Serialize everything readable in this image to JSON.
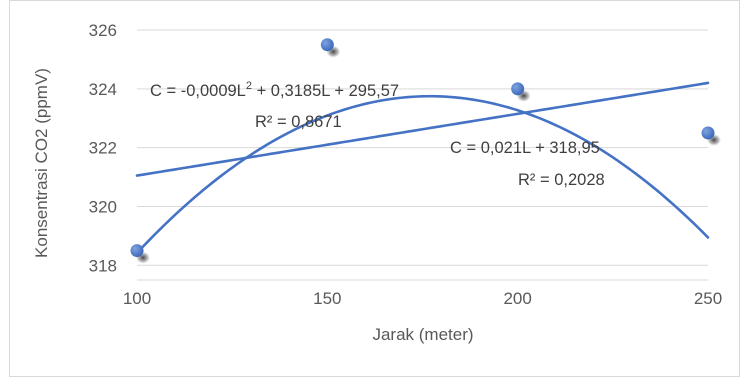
{
  "chart_data": {
    "type": "scatter",
    "x": [
      100,
      150,
      200,
      250
    ],
    "y": [
      318.5,
      325.5,
      324.0,
      322.5
    ],
    "xlabel": "Jarak (meter)",
    "ylabel": "Konsentrasi CO2 (ppmV)",
    "xlim": [
      100,
      250
    ],
    "ylim": [
      317.5,
      326
    ],
    "xticks": [
      100,
      150,
      200,
      250
    ],
    "yticks": [
      318,
      320,
      322,
      324,
      326
    ],
    "grid": "horizontal",
    "marker_color": "#4472c4",
    "trendline_color": "#4472c4",
    "trendlines": [
      {
        "kind": "polynomial",
        "coefficients": [
          -0.0009,
          0.3185,
          295.57
        ],
        "equation_parts": [
          "C = -0,0009L",
          "2",
          " + 0,3185L + 295,57"
        ],
        "r_squared_text": "R² = 0,8671"
      },
      {
        "kind": "linear",
        "coefficients": [
          0.021,
          318.95
        ],
        "equation_text": "C = 0,021L + 318,95",
        "r_squared_text": "R² = 0,2028"
      }
    ]
  }
}
